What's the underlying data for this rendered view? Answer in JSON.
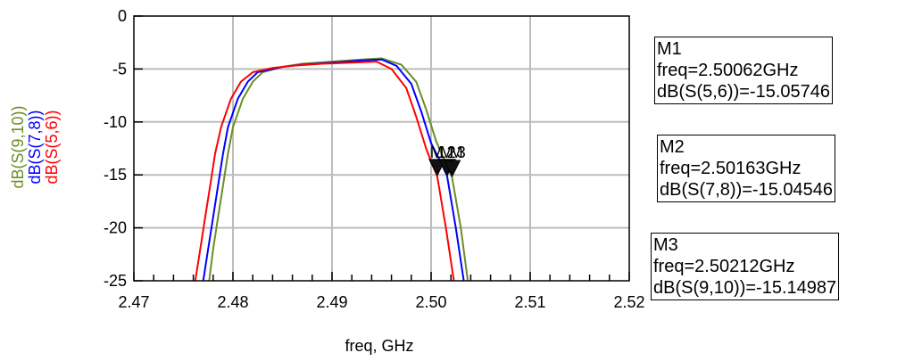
{
  "chart_data": {
    "type": "line",
    "xlabel": "freq, GHz",
    "xlim": [
      2.47,
      2.52
    ],
    "ylim": [
      -25,
      0
    ],
    "xticks": [
      "2.47",
      "2.48",
      "2.49",
      "2.50",
      "2.51",
      "2.52"
    ],
    "yticks": [
      "0",
      "-5",
      "-10",
      "-15",
      "-20",
      "-25"
    ],
    "grid": true,
    "series": [
      {
        "name": "dB(S(9,10))",
        "color": "#6b8e23",
        "x": [
          2.4776,
          2.478,
          2.4785,
          2.479,
          2.4795,
          2.48,
          2.481,
          2.482,
          2.483,
          2.485,
          2.487,
          2.49,
          2.493,
          2.495,
          2.497,
          2.4985,
          2.4995,
          2.5005,
          2.5012,
          2.5021,
          2.503,
          2.5037
        ],
        "y": [
          -25.0,
          -22.0,
          -19.0,
          -16.0,
          -13.0,
          -10.5,
          -7.8,
          -6.2,
          -5.3,
          -4.8,
          -4.5,
          -4.3,
          -4.1,
          -4.0,
          -4.6,
          -6.2,
          -8.8,
          -11.8,
          -13.3,
          -15.15,
          -20.0,
          -25.0
        ]
      },
      {
        "name": "dB(S(7,8))",
        "color": "#0000ff",
        "x": [
          2.477,
          2.4775,
          2.478,
          2.4785,
          2.479,
          2.4795,
          2.4805,
          2.4815,
          2.4825,
          2.485,
          2.487,
          2.49,
          2.493,
          2.495,
          2.4965,
          2.498,
          2.499,
          2.5,
          2.5008,
          2.5016,
          2.5025,
          2.5033
        ],
        "y": [
          -25.0,
          -22.0,
          -19.0,
          -16.0,
          -13.0,
          -10.5,
          -7.8,
          -6.2,
          -5.3,
          -4.8,
          -4.6,
          -4.4,
          -4.2,
          -4.1,
          -4.7,
          -6.4,
          -9.0,
          -12.0,
          -13.5,
          -15.05,
          -20.0,
          -25.0
        ]
      },
      {
        "name": "dB(S(5,6))",
        "color": "#ff0000",
        "x": [
          2.4762,
          2.4767,
          2.4772,
          2.4777,
          2.4782,
          2.4788,
          2.4798,
          2.4808,
          2.482,
          2.484,
          2.486,
          2.489,
          2.492,
          2.4945,
          2.496,
          2.4975,
          2.4985,
          2.4995,
          2.5001,
          2.5006,
          2.5015,
          2.5023
        ],
        "y": [
          -25.0,
          -22.0,
          -19.0,
          -16.0,
          -13.0,
          -10.5,
          -7.8,
          -6.2,
          -5.3,
          -4.9,
          -4.7,
          -4.5,
          -4.4,
          -4.3,
          -5.0,
          -6.8,
          -9.5,
          -12.5,
          -14.0,
          -15.06,
          -20.0,
          -25.0
        ]
      }
    ],
    "markers": [
      {
        "label": "M1",
        "freq_text": "freq=2.50062GHz",
        "value_text": "dB(S(5,6))=-15.05746",
        "x": 2.50062,
        "y": -15.05746
      },
      {
        "label": "M2",
        "freq_text": "freq=2.50163GHz",
        "value_text": "dB(S(7,8))=-15.04546",
        "x": 2.50163,
        "y": -15.04546
      },
      {
        "label": "M3",
        "freq_text": "freq=2.50212GHz",
        "value_text": "dB(S(9,10))=-15.14987",
        "x": 2.50212,
        "y": -15.14987
      }
    ],
    "marker_cluster_label": "M1M2M3"
  }
}
